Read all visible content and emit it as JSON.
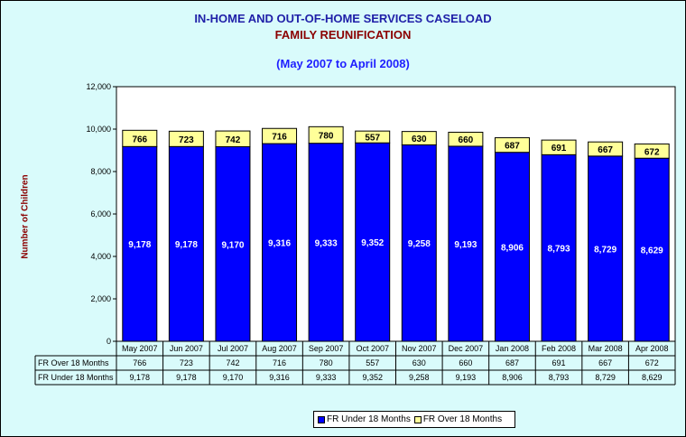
{
  "chart_data": {
    "type": "bar",
    "stacked": true,
    "title": "IN-HOME AND OUT-OF-HOME SERVICES CASELOAD",
    "subtitle": "FAMILY REUNIFICATION",
    "period": "(May 2007 to April 2008)",
    "ylabel": "Number of Children",
    "xlabel": "",
    "ylim": [
      0,
      12000
    ],
    "yticks": [
      "0",
      "2,000",
      "4,000",
      "6,000",
      "8,000",
      "10,000",
      "12,000"
    ],
    "grid": false,
    "categories": [
      "May 2007",
      "Jun 2007",
      "Jul 2007",
      "Aug 2007",
      "Sep 2007",
      "Oct 2007",
      "Nov 2007",
      "Dec 2007",
      "Jan 2008",
      "Feb 2008",
      "Mar 2008",
      "Apr 2008"
    ],
    "series": [
      {
        "name": "FR Under 18 Months",
        "color": "#0000ff",
        "values": [
          9178,
          9178,
          9170,
          9316,
          9333,
          9352,
          9258,
          9193,
          8906,
          8793,
          8729,
          8629
        ],
        "labels": [
          "9,178",
          "9,178",
          "9,170",
          "9,316",
          "9,333",
          "9,352",
          "9,258",
          "9,193",
          "8,906",
          "8,793",
          "8,729",
          "8,629"
        ]
      },
      {
        "name": "FR Over 18 Months",
        "color": "#ffff99",
        "values": [
          766,
          723,
          742,
          716,
          780,
          557,
          630,
          660,
          687,
          691,
          667,
          672
        ],
        "labels": [
          "766",
          "723",
          "742",
          "716",
          "780",
          "557",
          "630",
          "660",
          "687",
          "691",
          "667",
          "672"
        ]
      }
    ],
    "table_rows": [
      "FR Over 18 Months",
      "FR Under 18 Months"
    ],
    "legend_position": "bottom"
  },
  "colors": {
    "background": "#d9fbfb",
    "plot_background": "#ffffff",
    "under_bar": "#0000ff",
    "over_bar": "#ffff99"
  }
}
